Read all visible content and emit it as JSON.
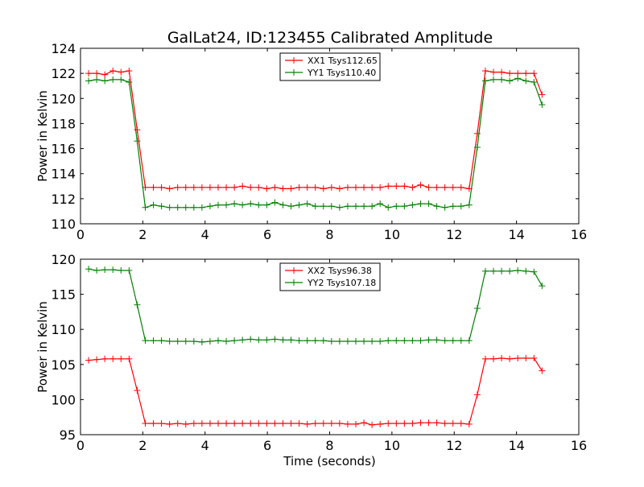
{
  "title": "GalLat24, ID:123455 Calibrated Amplitude",
  "colors": {
    "red": "#ff0000",
    "green": "#008000"
  },
  "chart_data": [
    {
      "type": "line",
      "ylabel": "Power in Kelvin",
      "xlabel": "",
      "xlim": [
        0,
        16
      ],
      "ylim": [
        110,
        124
      ],
      "xticks": [
        "0",
        "2",
        "4",
        "6",
        "8",
        "10",
        "12",
        "14",
        "16"
      ],
      "yticks": [
        "110",
        "112",
        "114",
        "116",
        "118",
        "120",
        "122",
        "124"
      ],
      "legend_position": "top-center",
      "x": [
        0.26,
        0.52,
        0.78,
        1.04,
        1.3,
        1.56,
        1.82,
        2.08,
        2.34,
        2.6,
        2.86,
        3.12,
        3.38,
        3.64,
        3.9,
        4.16,
        4.42,
        4.68,
        4.94,
        5.2,
        5.46,
        5.72,
        5.98,
        6.24,
        6.5,
        6.76,
        7.02,
        7.28,
        7.54,
        7.8,
        8.06,
        8.32,
        8.58,
        8.84,
        9.1,
        9.36,
        9.62,
        9.88,
        10.14,
        10.4,
        10.66,
        10.92,
        11.18,
        11.44,
        11.7,
        11.96,
        12.22,
        12.48,
        12.74,
        13.0,
        13.26,
        13.52,
        13.78,
        14.04,
        14.3,
        14.56,
        14.82
      ],
      "series": [
        {
          "name": "XX1 Tsys112.65",
          "color": "#ff0000",
          "values": [
            122.0,
            122.0,
            121.9,
            122.2,
            122.1,
            122.2,
            117.5,
            112.9,
            112.9,
            112.9,
            112.8,
            112.9,
            112.9,
            112.9,
            112.9,
            112.9,
            112.9,
            112.9,
            112.9,
            113.0,
            112.9,
            112.9,
            112.8,
            112.9,
            112.8,
            112.8,
            112.9,
            112.9,
            112.9,
            112.8,
            112.9,
            112.8,
            112.9,
            112.9,
            112.9,
            112.9,
            112.9,
            113.0,
            113.0,
            113.0,
            112.9,
            113.1,
            112.9,
            112.9,
            112.9,
            112.9,
            112.9,
            112.8,
            117.2,
            122.2,
            122.1,
            122.1,
            122.0,
            122.0,
            122.0,
            122.0,
            120.3
          ]
        },
        {
          "name": "YY1 Tsys110.40",
          "color": "#008000",
          "values": [
            121.4,
            121.5,
            121.4,
            121.5,
            121.5,
            121.3,
            116.6,
            111.3,
            111.5,
            111.4,
            111.3,
            111.3,
            111.3,
            111.3,
            111.3,
            111.4,
            111.5,
            111.5,
            111.6,
            111.5,
            111.6,
            111.5,
            111.5,
            111.7,
            111.5,
            111.4,
            111.5,
            111.6,
            111.4,
            111.4,
            111.4,
            111.3,
            111.4,
            111.4,
            111.4,
            111.4,
            111.6,
            111.3,
            111.4,
            111.4,
            111.5,
            111.6,
            111.6,
            111.4,
            111.3,
            111.4,
            111.4,
            111.5,
            116.1,
            121.4,
            121.5,
            121.5,
            121.4,
            121.6,
            121.4,
            121.3,
            119.5
          ]
        }
      ]
    },
    {
      "type": "line",
      "ylabel": "Power in Kelvin",
      "xlabel": "Time (seconds)",
      "xlim": [
        0,
        16
      ],
      "ylim": [
        95,
        120
      ],
      "xticks": [
        "0",
        "2",
        "4",
        "6",
        "8",
        "10",
        "12",
        "14",
        "16"
      ],
      "yticks": [
        "95",
        "100",
        "105",
        "110",
        "115",
        "120"
      ],
      "legend_position": "top-center",
      "x": [
        0.26,
        0.52,
        0.78,
        1.04,
        1.3,
        1.56,
        1.82,
        2.08,
        2.34,
        2.6,
        2.86,
        3.12,
        3.38,
        3.64,
        3.9,
        4.16,
        4.42,
        4.68,
        4.94,
        5.2,
        5.46,
        5.72,
        5.98,
        6.24,
        6.5,
        6.76,
        7.02,
        7.28,
        7.54,
        7.8,
        8.06,
        8.32,
        8.58,
        8.84,
        9.1,
        9.36,
        9.62,
        9.88,
        10.14,
        10.4,
        10.66,
        10.92,
        11.18,
        11.44,
        11.7,
        11.96,
        12.22,
        12.48,
        12.74,
        13.0,
        13.26,
        13.52,
        13.78,
        14.04,
        14.3,
        14.56,
        14.82
      ],
      "series": [
        {
          "name": "XX2 Tsys96.38",
          "color": "#ff0000",
          "values": [
            105.6,
            105.7,
            105.8,
            105.8,
            105.8,
            105.8,
            101.3,
            96.6,
            96.6,
            96.6,
            96.5,
            96.6,
            96.5,
            96.6,
            96.6,
            96.6,
            96.6,
            96.6,
            96.6,
            96.6,
            96.6,
            96.6,
            96.6,
            96.6,
            96.6,
            96.6,
            96.6,
            96.5,
            96.6,
            96.6,
            96.6,
            96.6,
            96.5,
            96.5,
            96.7,
            96.4,
            96.5,
            96.6,
            96.6,
            96.6,
            96.6,
            96.7,
            96.7,
            96.7,
            96.6,
            96.6,
            96.6,
            96.5,
            100.7,
            105.8,
            105.8,
            105.9,
            105.8,
            105.9,
            105.9,
            105.9,
            104.1
          ]
        },
        {
          "name": "YY2 Tsys107.18",
          "color": "#008000",
          "values": [
            118.6,
            118.4,
            118.5,
            118.5,
            118.4,
            118.4,
            113.5,
            108.4,
            108.4,
            108.4,
            108.3,
            108.3,
            108.3,
            108.3,
            108.2,
            108.3,
            108.4,
            108.3,
            108.4,
            108.5,
            108.6,
            108.5,
            108.5,
            108.6,
            108.5,
            108.5,
            108.4,
            108.4,
            108.4,
            108.4,
            108.3,
            108.3,
            108.3,
            108.3,
            108.3,
            108.3,
            108.3,
            108.4,
            108.4,
            108.4,
            108.4,
            108.4,
            108.5,
            108.5,
            108.4,
            108.4,
            108.4,
            108.4,
            113.0,
            118.3,
            118.3,
            118.3,
            118.3,
            118.4,
            118.3,
            118.2,
            116.2
          ]
        }
      ]
    }
  ]
}
